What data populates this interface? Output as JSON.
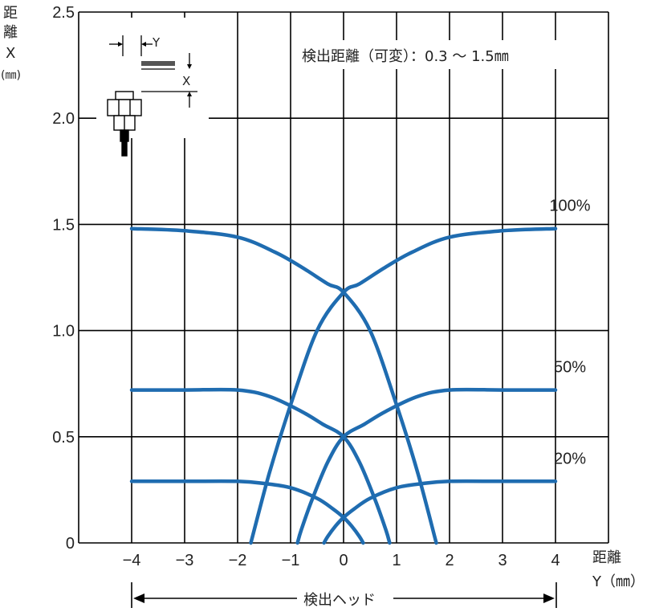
{
  "chart_data": {
    "type": "line",
    "annotation": "検出距離（可変）：0.3 ～ 1.5㎜",
    "ylabel_chars": [
      "距",
      "離",
      "X",
      "(㎜)"
    ],
    "xlabel_line1": "距離",
    "xlabel_line2": "Y（㎜）",
    "head_label": "検出ヘッド",
    "inset_labels": {
      "y": "Y",
      "x": "X"
    },
    "xlim": [
      -5,
      5
    ],
    "ylim": [
      0,
      2.5
    ],
    "xticks": [
      -4,
      -3,
      -2,
      -1,
      0,
      1,
      2,
      3,
      4
    ],
    "xtick_labels": [
      "−4",
      "−3",
      "−2",
      "−1",
      "0",
      "1",
      "2",
      "3",
      "4"
    ],
    "yticks": [
      0,
      0.5,
      1.0,
      1.5,
      2.0,
      2.5
    ],
    "ytick_labels": [
      "0",
      "0.5",
      "1.0",
      "1.5",
      "2.0",
      "2.5"
    ],
    "grid": true,
    "series": [
      {
        "name": "100%",
        "left": {
          "x": [
            -4,
            -3,
            -2,
            -1.3,
            -0.8,
            -0.3,
            0,
            0.5,
            1.0,
            1.4,
            1.75
          ],
          "y": [
            1.48,
            1.47,
            1.44,
            1.37,
            1.3,
            1.22,
            1.18,
            1.0,
            0.65,
            0.33,
            0.0
          ]
        },
        "right": {
          "x": [
            4,
            3,
            2,
            1.3,
            0.8,
            0.3,
            0,
            -0.5,
            -1.0,
            -1.4,
            -1.75
          ],
          "y": [
            1.48,
            1.47,
            1.44,
            1.37,
            1.3,
            1.22,
            1.18,
            1.0,
            0.65,
            0.33,
            0.0
          ]
        }
      },
      {
        "name": "50%",
        "left": {
          "x": [
            -4,
            -3,
            -2,
            -1.4,
            -0.8,
            -0.4,
            0,
            0.3,
            0.6,
            0.8,
            0.87
          ],
          "y": [
            0.72,
            0.72,
            0.72,
            0.69,
            0.62,
            0.56,
            0.5,
            0.38,
            0.2,
            0.06,
            0.0
          ]
        },
        "right": {
          "x": [
            4,
            3,
            2,
            1.4,
            0.8,
            0.4,
            0,
            -0.3,
            -0.6,
            -0.8,
            -0.87
          ],
          "y": [
            0.72,
            0.72,
            0.72,
            0.69,
            0.62,
            0.56,
            0.5,
            0.38,
            0.2,
            0.06,
            0.0
          ]
        }
      },
      {
        "name": "20%",
        "left": {
          "x": [
            -4,
            -3,
            -2,
            -1.5,
            -1.0,
            -0.5,
            -0.2,
            0,
            0.15,
            0.3,
            0.37
          ],
          "y": [
            0.29,
            0.29,
            0.29,
            0.28,
            0.26,
            0.21,
            0.16,
            0.12,
            0.08,
            0.03,
            0.0
          ]
        },
        "right": {
          "x": [
            4,
            3,
            2,
            1.5,
            1.0,
            0.5,
            0.2,
            0,
            -0.15,
            -0.3,
            -0.37
          ],
          "y": [
            0.29,
            0.29,
            0.29,
            0.28,
            0.26,
            0.21,
            0.16,
            0.12,
            0.08,
            0.03,
            0.0
          ]
        }
      }
    ],
    "series_color": "#1f6cb0"
  }
}
